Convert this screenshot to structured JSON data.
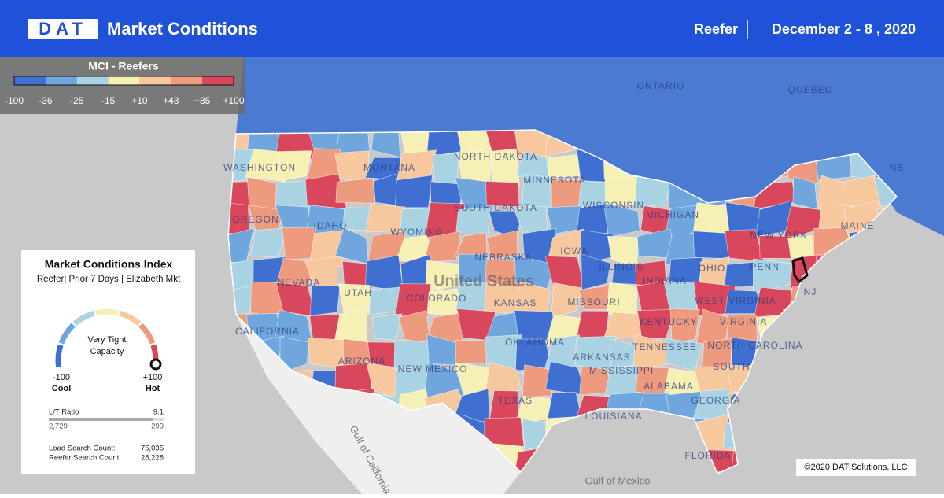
{
  "header": {
    "logo": "DAT",
    "title": "Market Conditions",
    "product": "Reefer",
    "date": "December 2 - 8 , 2020"
  },
  "legend": {
    "title": "MCI - Reefers",
    "labels": [
      "-100",
      "-36",
      "-25",
      "-15",
      "+10",
      "+43",
      "+85",
      "+100"
    ],
    "colors": [
      "#3f6fd1",
      "#6fa6dd",
      "#a9d3e3",
      "#f7f0b4",
      "#f7c79e",
      "#ee9a7e",
      "#d9475c"
    ]
  },
  "map": {
    "labels": [
      "ONTARIO",
      "QUEBEC",
      "WASHINGTON",
      "MONTANA",
      "NORTH DAKOTA",
      "MINNESOTA",
      "OREGON",
      "IDAHO",
      "SOUTH DAKOTA",
      "WISCONSIN",
      "WYOMING",
      "MICHIGAN",
      "NEW YORK",
      "MAINE",
      "NEBRASKA",
      "IOWA",
      "NEVADA",
      "UTAH",
      "United States",
      "COLORADO",
      "KANSAS",
      "MISSOURI",
      "ILLINOIS",
      "INDIANA",
      "OHIO",
      "PENN",
      "NJ",
      "CALIFORNIA",
      "KENTUCKY",
      "WEST VIRGINIA",
      "VIRGINIA",
      "OKLAHOMA",
      "TENNESSEE",
      "NORTH CAROLINA",
      "ARIZONA",
      "NEW MEXICO",
      "ARKANSAS",
      "MISSISSIPPI",
      "ALABAMA",
      "GEORGIA",
      "SOUTH",
      "TEXAS",
      "LOUISIANA",
      "FLORIDA",
      "Gulf of California",
      "Gulf of Mexico",
      "NB"
    ]
  },
  "panel": {
    "title": "Market Conditions Index",
    "subtitle": "Reefer| Prior 7 Days | Elizabeth Mkt",
    "gauge_label": [
      "Very Tight",
      "Capacity"
    ],
    "min": "-100",
    "min_label": "Cool",
    "max": "+100",
    "max_label": "Hot",
    "ratio_label": "L/T Ratio",
    "ratio": "9.1",
    "loads": "2,729",
    "trucks": "299",
    "load_search_label": "Load Search Count:",
    "load_search": "75,035",
    "reefer_search_label": "Reefer Search Count:",
    "reefer_search": "28,228"
  },
  "copyright": "©2020 DAT Solutions, LLC"
}
